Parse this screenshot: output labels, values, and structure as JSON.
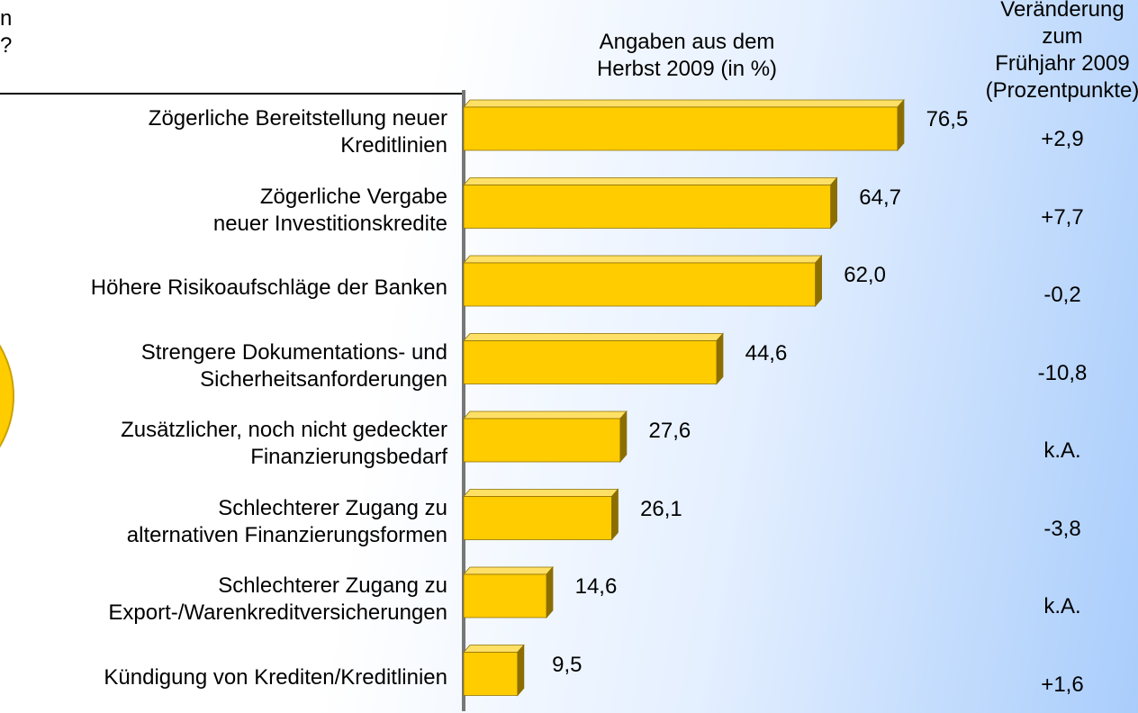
{
  "chart_data": {
    "type": "bar3d",
    "annotations": [
      "n",
      "?"
    ],
    "value_header": "Angaben aus dem\nHerbst 2009 (in %)",
    "change_header": "Veränderung zum\nFrühjahr 2009\n(Prozentpunkte)",
    "categories": [
      "Zögerliche Bereitstellung neuer\nKreditlinien",
      "Zögerliche Vergabe\nneuer Investitionskredite",
      "Höhere Risikoaufschläge der Banken",
      "Strengere Dokumentations- und\nSicherheitsanforderungen",
      "Zusätzlicher, noch nicht gedeckter\nFinanzierungsbedarf",
      "Schlechterer Zugang zu\nalternativen Finanzierungsformen",
      "Schlechterer Zugang zu\nExport-/Warenkreditversicherungen",
      "Kündigung von Krediten/Kreditlinien"
    ],
    "values": [
      76.5,
      64.7,
      62.0,
      44.6,
      27.6,
      26.1,
      14.6,
      9.5
    ],
    "value_labels": [
      "76,5",
      "64,7",
      "62,0",
      "44,6",
      "27,6",
      "26,1",
      "14,6",
      "9,5"
    ],
    "changes": [
      2.9,
      7.7,
      -0.2,
      -10.8,
      null,
      -3.8,
      null,
      1.6
    ],
    "change_labels": [
      "+2,9",
      "+7,7",
      "-0,2",
      "-10,8",
      "k.A.",
      "-3,8",
      "k.A.",
      "+1,6"
    ],
    "color": "#ffcc00",
    "xlim": [
      0,
      100
    ]
  }
}
